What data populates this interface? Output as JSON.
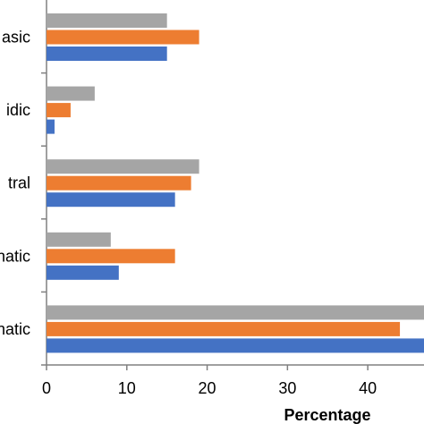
{
  "chart_data": {
    "type": "bar",
    "orientation": "horizontal",
    "categories": [
      "asic",
      "idic",
      "tral",
      "natic",
      "natic"
    ],
    "series": [
      {
        "values": [
          15,
          6,
          19,
          8,
          48
        ],
        "color": "#a5a5a5"
      },
      {
        "values": [
          19,
          3,
          18,
          16,
          44
        ],
        "color": "#ed7d31"
      },
      {
        "values": [
          15,
          1,
          16,
          9,
          48
        ],
        "color": "#4472c4"
      }
    ],
    "xlabel": "Percentage",
    "xticks": [
      "0",
      "10",
      "20",
      "30",
      "40"
    ],
    "xlim": [
      0,
      47
    ],
    "grid": false,
    "legend": "none"
  }
}
